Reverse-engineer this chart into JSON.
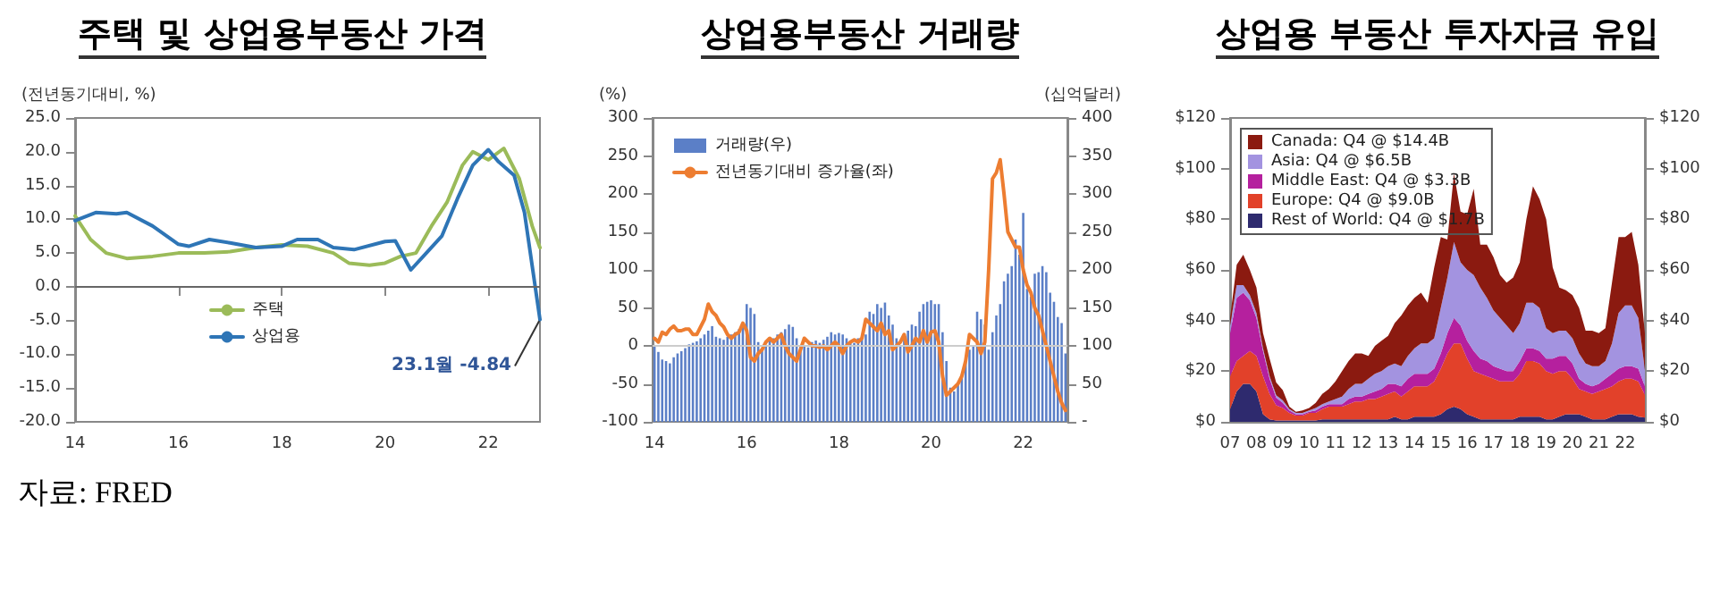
{
  "chart_data": [
    {
      "type": "line",
      "title": "주택 및 상업용부동산 가격",
      "ylabel": "(전년동기대비, %)",
      "xlim": [
        14,
        23
      ],
      "xticks": [
        14,
        16,
        18,
        20,
        22
      ],
      "ylim": [
        -20,
        25
      ],
      "yticks": [
        {
          "value": -20,
          "label": "-20.0"
        },
        {
          "value": -15,
          "label": "-15.0"
        },
        {
          "value": -10,
          "label": "-10.0"
        },
        {
          "value": -5,
          "label": "-5.0"
        },
        {
          "value": 0,
          "label": "0.0"
        },
        {
          "value": 5,
          "label": "5.0"
        },
        {
          "value": 10,
          "label": "10.0"
        },
        {
          "value": 15,
          "label": "15.0"
        },
        {
          "value": 20,
          "label": "20.0"
        },
        {
          "value": 25,
          "label": "25.0"
        }
      ],
      "series": [
        {
          "name": "주택",
          "color": "#9bbb59",
          "x": [
            14,
            14.3,
            14.6,
            15,
            15.5,
            16,
            16.5,
            17,
            17.5,
            18,
            18.5,
            19,
            19.3,
            19.7,
            20,
            20.3,
            20.6,
            20.9,
            21.2,
            21.5,
            21.7,
            22,
            22.3,
            22.6,
            22.85,
            23
          ],
          "values": [
            10.5,
            7,
            5,
            4.2,
            4.5,
            5,
            5,
            5.2,
            5.8,
            6.2,
            6,
            5,
            3.5,
            3.2,
            3.5,
            4.5,
            5,
            9,
            12.5,
            18,
            20,
            18.8,
            20.5,
            16,
            9,
            5.8
          ]
        },
        {
          "name": "상업용",
          "color": "#2e75b6",
          "x": [
            14,
            14.4,
            14.8,
            15,
            15.5,
            16,
            16.2,
            16.6,
            17,
            17.5,
            18,
            18.3,
            18.7,
            19,
            19.4,
            20,
            20.2,
            20.5,
            20.8,
            21.1,
            21.4,
            21.7,
            22,
            22.2,
            22.5,
            22.7,
            23
          ],
          "values": [
            9.8,
            11,
            10.8,
            11,
            9,
            6.3,
            6,
            7,
            6.5,
            5.8,
            6,
            7,
            7,
            5.8,
            5.5,
            6.7,
            6.8,
            2.5,
            5,
            7.5,
            13,
            18,
            20.3,
            18.5,
            16.5,
            11,
            -4.84
          ]
        }
      ],
      "ref_lines": [
        {
          "axis": "y",
          "value": 0,
          "color": "#666666"
        }
      ],
      "legend": "bottom left",
      "annotations": [
        {
          "text": "23.1월 -4.84",
          "x": 23,
          "y": -4.84
        },
        "자료: FRED"
      ]
    },
    {
      "type": "bar",
      "title": "상업용부동산 거래량",
      "ylabel": "(%)",
      "y2label": "(십억달러)",
      "categories": [
        "14",
        null,
        null,
        null,
        null,
        null,
        null,
        null,
        null,
        null,
        null,
        null,
        null,
        null,
        null,
        null,
        null,
        null,
        null,
        null,
        null,
        null,
        null,
        null,
        "16",
        null,
        null,
        null,
        null,
        null,
        null,
        null,
        null,
        null,
        null,
        null,
        null,
        null,
        null,
        null,
        null,
        null,
        null,
        null,
        null,
        null,
        null,
        null,
        "18",
        null,
        null,
        null,
        null,
        null,
        null,
        null,
        null,
        null,
        null,
        null,
        null,
        null,
        null,
        null,
        null,
        null,
        null,
        null,
        null,
        null,
        null,
        null,
        "20",
        null,
        null,
        null,
        null,
        null,
        null,
        null,
        null,
        null,
        null,
        null,
        null,
        null,
        null,
        null,
        null,
        null,
        null,
        null,
        null,
        null,
        null,
        null,
        "22",
        null,
        null,
        null,
        null,
        null,
        null,
        null,
        null,
        null,
        null,
        null
      ],
      "ylim": [
        -100,
        300
      ],
      "yticks": [
        -100,
        -50,
        0,
        50,
        100,
        150,
        200,
        250,
        300
      ],
      "y2lim": [
        0,
        400
      ],
      "y2ticks": [
        {
          "value": 0,
          "label": "-"
        },
        50,
        100,
        150,
        200,
        250,
        300,
        350,
        400
      ],
      "series": [
        {
          "name": "거래량(우)",
          "type": "bar",
          "axis": "y2",
          "color": "#5b7fc7",
          "values": [
            100,
            92,
            82,
            80,
            77,
            85,
            90,
            93,
            97,
            102,
            104,
            106,
            110,
            115,
            120,
            126,
            112,
            110,
            108,
            112,
            115,
            118,
            122,
            125,
            155,
            150,
            142,
            105,
            95,
            100,
            108,
            110,
            115,
            118,
            122,
            128,
            125,
            110,
            100,
            100,
            98,
            105,
            107,
            104,
            108,
            112,
            118,
            115,
            117,
            115,
            110,
            105,
            104,
            110,
            112,
            115,
            145,
            142,
            155,
            150,
            157,
            140,
            128,
            110,
            100,
            112,
            120,
            128,
            126,
            145,
            155,
            158,
            160,
            155,
            155,
            118,
            80,
            45,
            40,
            50,
            62,
            80,
            95,
            100,
            145,
            135,
            128,
            95,
            118,
            140,
            155,
            185,
            195,
            205,
            240,
            220,
            275,
            175,
            165,
            195,
            197,
            205,
            197,
            170,
            158,
            138,
            130,
            90
          ]
        },
        {
          "name": "전년동기대비 증가율(좌)",
          "type": "line",
          "color": "#ed7d31",
          "values": [
            10,
            5,
            18,
            15,
            22,
            26,
            20,
            20,
            22,
            22,
            15,
            15,
            25,
            35,
            55,
            45,
            40,
            30,
            25,
            15,
            10,
            15,
            18,
            30,
            20,
            -15,
            -20,
            -10,
            -5,
            5,
            10,
            5,
            10,
            15,
            0,
            -10,
            -15,
            -20,
            -5,
            10,
            5,
            0,
            0,
            -2,
            0,
            -5,
            0,
            5,
            0,
            -10,
            0,
            5,
            8,
            5,
            10,
            35,
            30,
            25,
            20,
            30,
            15,
            20,
            -5,
            0,
            5,
            15,
            -8,
            0,
            10,
            5,
            20,
            5,
            18,
            20,
            5,
            -40,
            -65,
            -60,
            -55,
            -50,
            -40,
            -20,
            15,
            10,
            5,
            -10,
            5,
            100,
            220,
            228,
            245,
            200,
            150,
            140,
            130,
            130,
            100,
            80,
            70,
            50,
            40,
            20,
            0,
            -20,
            -40,
            -60,
            -75,
            -85
          ]
        }
      ],
      "ref_lines": [
        {
          "axis": "y",
          "value": 0,
          "color": "#cccccc"
        }
      ],
      "legend": "top left"
    },
    {
      "type": "area",
      "title": "상업용 부동산 투자자금 유입",
      "stacked": true,
      "categories": [
        "07",
        null,
        null,
        null,
        "08",
        null,
        null,
        null,
        "09",
        null,
        null,
        null,
        "10",
        null,
        null,
        null,
        "11",
        null,
        null,
        null,
        "12",
        null,
        null,
        null,
        "13",
        null,
        null,
        null,
        "14",
        null,
        null,
        null,
        "15",
        null,
        null,
        null,
        "16",
        null,
        null,
        null,
        "17",
        null,
        null,
        null,
        "18",
        null,
        null,
        null,
        "19",
        null,
        null,
        null,
        "20",
        null,
        null,
        null,
        "21",
        null,
        null,
        null,
        "22",
        null,
        null,
        null
      ],
      "ylim": [
        0,
        120
      ],
      "yticks": [
        {
          "value": 0,
          "label": "$0"
        },
        {
          "value": 20,
          "label": "$20"
        },
        {
          "value": 40,
          "label": "$40"
        },
        {
          "value": 60,
          "label": "$60"
        },
        {
          "value": 80,
          "label": "$80"
        },
        {
          "value": 100,
          "label": "$100"
        },
        {
          "value": 120,
          "label": "$120"
        }
      ],
      "y2lim": [
        0,
        120
      ],
      "y2ticks": [
        {
          "value": 0,
          "label": "$0"
        },
        {
          "value": 20,
          "label": "$20"
        },
        {
          "value": 40,
          "label": "$40"
        },
        {
          "value": 60,
          "label": "$60"
        },
        {
          "value": 80,
          "label": "$80"
        },
        {
          "value": 100,
          "label": "$100"
        },
        {
          "value": 120,
          "label": "$120"
        }
      ],
      "series": [
        {
          "name": "Rest of World: Q4 @ $1.7B",
          "color": "#2e2a6e",
          "values": [
            5,
            12,
            15,
            15,
            12,
            3,
            1,
            0.5,
            0.5,
            0.5,
            0.5,
            0.5,
            0.5,
            0.5,
            1,
            1,
            1,
            1,
            1,
            1,
            1,
            1,
            1,
            1,
            1,
            2,
            1,
            1,
            2,
            2,
            2,
            2,
            3,
            5,
            6,
            5,
            3,
            2,
            1,
            1,
            1,
            1,
            1,
            1,
            2,
            2,
            2,
            2,
            1,
            1,
            2,
            3,
            3,
            3,
            2,
            1,
            1,
            1,
            2,
            3,
            3,
            3,
            2,
            1.7
          ]
        },
        {
          "name": "Europe: Q4 @ $9.0B",
          "color": "#e2412a",
          "values": [
            13,
            12,
            11,
            13,
            14,
            15,
            10,
            6,
            5,
            3,
            2,
            2,
            3,
            3,
            4,
            5,
            5,
            5,
            6,
            7,
            7,
            8,
            8,
            9,
            10,
            10,
            9,
            11,
            12,
            12,
            12,
            14,
            18,
            22,
            25,
            26,
            22,
            18,
            18,
            17,
            16,
            15,
            15,
            15,
            17,
            22,
            22,
            21,
            19,
            18,
            18,
            17,
            14,
            10,
            10,
            10,
            11,
            12,
            12,
            13,
            14,
            14,
            14,
            9.0
          ]
        },
        {
          "name": "Middle East: Q4 @ $3.3B",
          "color": "#b5209e",
          "values": [
            17,
            25,
            25,
            20,
            15,
            10,
            6,
            3,
            2,
            1,
            0.5,
            0.5,
            0.5,
            1,
            1,
            1,
            1,
            1,
            2,
            2,
            2,
            2,
            3,
            3,
            4,
            3,
            4,
            5,
            5,
            5,
            5,
            5,
            6,
            8,
            10,
            7,
            7,
            8,
            6,
            6,
            5,
            5,
            4,
            4,
            5,
            5,
            5,
            5,
            5,
            6,
            6,
            6,
            6,
            4,
            3,
            3,
            3,
            4,
            5,
            5,
            5,
            5,
            5,
            3.3
          ]
        },
        {
          "name": "Asia: Q4 @ $6.5B",
          "color": "#a393e0",
          "values": [
            3,
            5,
            3,
            2,
            2,
            1,
            1,
            1,
            1,
            0.5,
            0.5,
            0.5,
            0.5,
            1,
            1,
            1,
            2,
            3,
            4,
            5,
            5,
            6,
            7,
            7,
            7,
            8,
            8,
            9,
            10,
            12,
            12,
            12,
            18,
            22,
            30,
            25,
            28,
            30,
            28,
            25,
            22,
            20,
            18,
            15,
            15,
            18,
            18,
            17,
            12,
            10,
            10,
            10,
            10,
            10,
            8,
            8,
            7,
            7,
            12,
            22,
            24,
            24,
            20,
            6.5
          ]
        },
        {
          "name": "Canada: Q4 @ $14.4B",
          "color": "#8b1a10",
          "values": [
            3,
            8,
            12,
            10,
            10,
            6,
            7,
            5,
            4,
            1,
            0.5,
            1,
            1,
            2,
            4,
            5,
            7,
            10,
            11,
            12,
            12,
            9,
            11,
            12,
            12,
            16,
            20,
            20,
            20,
            20,
            16,
            28,
            28,
            15,
            27,
            20,
            22,
            34,
            17,
            21,
            21,
            17,
            17,
            22,
            24,
            33,
            46,
            43,
            43,
            26,
            17,
            16,
            17,
            18,
            13,
            14,
            13,
            13,
            24,
            30,
            27,
            29,
            21,
            14.4
          ]
        }
      ],
      "legend": "top left"
    }
  ]
}
